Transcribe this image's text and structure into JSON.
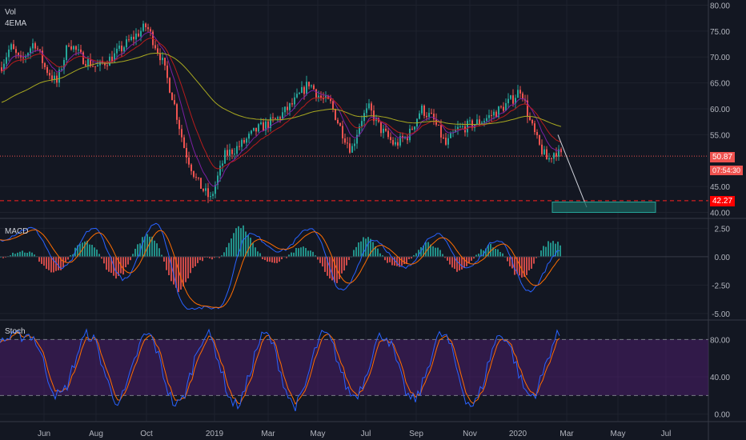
{
  "legend": {
    "vol": "Vol",
    "ema": "4EMA"
  },
  "panes": {
    "macd_title": "MACD",
    "stoch_title": "Stoch"
  },
  "price_tags": {
    "last": "50.87",
    "countdown": "07:54:30",
    "support": "42.27"
  },
  "price_axis_ticks": [
    "80.00",
    "75.00",
    "70.00",
    "65.00",
    "60.00",
    "55.00",
    "45.00",
    "40.00"
  ],
  "macd_axis_ticks": [
    "2.50",
    "0.00",
    "-2.50",
    "-5.00"
  ],
  "stoch_axis_ticks": [
    "80.00",
    "40.00",
    "0.00"
  ],
  "time_axis_ticks": [
    "Jun",
    "Aug",
    "Oct",
    "2019",
    "Mar",
    "May",
    "Jul",
    "Sep",
    "Nov",
    "2020",
    "Mar",
    "May",
    "Jul"
  ],
  "colors": {
    "background": "#131722",
    "up": "#26a69a",
    "down": "#ef5350",
    "ema_short": "#7b1fa2",
    "ema_mid": "#b71c1c",
    "ema_long": "#a8a820",
    "macd_line": "#2962ff",
    "signal_line": "#ff6d00",
    "stoch_k": "#2962ff",
    "stoch_d": "#ff6d00",
    "stoch_band": "#4a1d6a",
    "target_box": "#26a69a",
    "support_line": "#ef5350"
  },
  "chart_data": [
    {
      "type": "candlestick",
      "pane": "price",
      "x": [
        "Jun",
        "Aug",
        "Oct",
        "2019",
        "Mar",
        "May",
        "Jul",
        "Sep",
        "Nov",
        "2020",
        "Mar",
        "May",
        "Jul"
      ],
      "ylim": [
        39,
        81
      ],
      "series": [
        {
          "name": "Vol",
          "key_points": [
            {
              "x": "Apr 2018",
              "y": 70
            },
            {
              "x": "May 2018",
              "y": 72
            },
            {
              "x": "Jun 2018",
              "y": 67
            },
            {
              "x": "Jul 2018",
              "y": 74
            },
            {
              "x": "Aug 2018",
              "y": 70
            },
            {
              "x": "Sep 2018",
              "y": 72
            },
            {
              "x": "Oct 2018",
              "y": 76
            },
            {
              "x": "Nov 2018",
              "y": 60
            },
            {
              "x": "Dec 2018",
              "y": 46
            },
            {
              "x": "Dec 2018",
              "y": 42.5
            },
            {
              "x": "Jan 2019",
              "y": 53
            },
            {
              "x": "Mar 2019",
              "y": 58
            },
            {
              "x": "May 2019",
              "y": 65
            },
            {
              "x": "Jun 2019",
              "y": 52
            },
            {
              "x": "Jul 2019",
              "y": 60
            },
            {
              "x": "Aug 2019",
              "y": 54
            },
            {
              "x": "Sep 2019",
              "y": 61
            },
            {
              "x": "Oct 2019",
              "y": 53
            },
            {
              "x": "Nov 2019",
              "y": 57
            },
            {
              "x": "Jan 2020",
              "y": 65
            },
            {
              "x": "Feb 2020",
              "y": 50
            },
            {
              "x": "Feb 2020",
              "y": 50.87
            }
          ]
        }
      ],
      "horizontal_lines": [
        50.87,
        42.27
      ],
      "projection": {
        "from": 55,
        "to": 41,
        "box_range": [
          40,
          42
        ]
      }
    },
    {
      "type": "line",
      "pane": "macd",
      "ylim": [
        -5.5,
        3.3
      ],
      "series": [
        {
          "name": "MACD",
          "values": [
            1.5,
            2.5,
            -1.0,
            2.5,
            -2.0,
            3.0,
            -4.5,
            -4.5,
            2.0,
            0.5,
            2.5,
            -3.0,
            1.5,
            -1.0,
            2.0,
            -1.0,
            1.5,
            -3.0,
            0.5
          ]
        }
      ]
    },
    {
      "type": "line",
      "pane": "stoch",
      "ylim": [
        -8,
        100
      ],
      "series": [
        {
          "name": "Stoch",
          "values": [
            80,
            85,
            20,
            85,
            15,
            85,
            10,
            85,
            10,
            85,
            10,
            85,
            20,
            85,
            15,
            85,
            10,
            85,
            20,
            85
          ]
        }
      ]
    }
  ]
}
